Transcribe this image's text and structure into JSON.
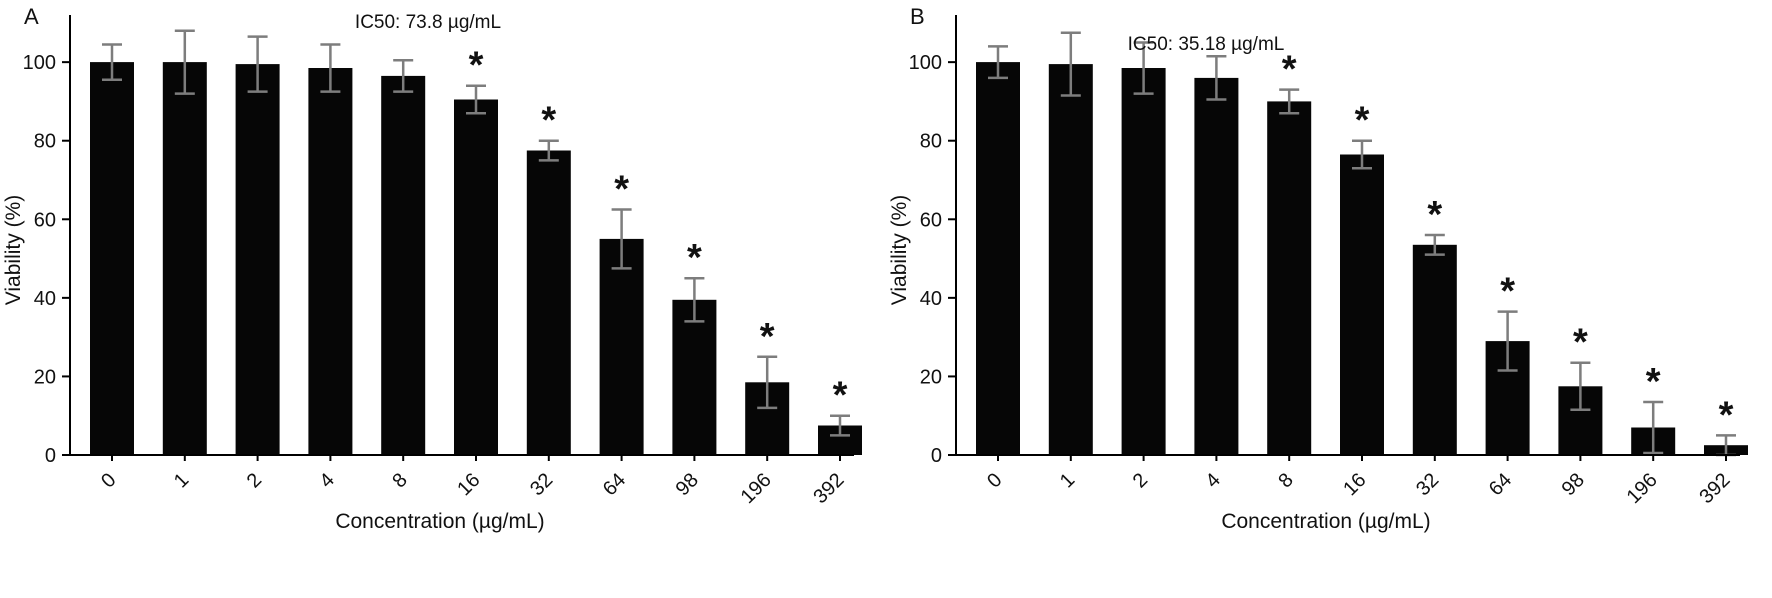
{
  "figure": {
    "background": "#ffffff",
    "bar_color": "#060606",
    "error_bar_color": "#7d7d7d",
    "axis_color": "#000000",
    "text_color": "#111111"
  },
  "chart_data": [
    {
      "type": "bar",
      "panel_label": "A",
      "title": "IC50: 73.8 µg/mL",
      "xlabel": "Concentration (µg/mL)",
      "ylabel": "Viability (%)",
      "categories": [
        "0",
        "1",
        "2",
        "4",
        "8",
        "16",
        "32",
        "64",
        "98",
        "196",
        "392"
      ],
      "values": [
        100,
        100,
        99.5,
        98.5,
        96.5,
        90.5,
        77.5,
        55,
        39.5,
        18.5,
        7.5
      ],
      "errors": [
        4.5,
        8,
        7,
        6,
        4,
        3.5,
        2.5,
        7.5,
        5.5,
        6.5,
        2.5
      ],
      "significant": [
        false,
        false,
        false,
        false,
        false,
        true,
        true,
        true,
        true,
        true,
        true
      ],
      "significance_marker": "*",
      "ylim": [
        0,
        112
      ],
      "yticks": [
        0,
        20,
        40,
        60,
        80,
        100
      ],
      "grid": false,
      "legend": null
    },
    {
      "type": "bar",
      "panel_label": "B",
      "title": "IC50: 35.18 µg/mL",
      "xlabel": "Concentration (µg/mL)",
      "ylabel": "Viability (%)",
      "categories": [
        "0",
        "1",
        "2",
        "4",
        "8",
        "16",
        "32",
        "64",
        "98",
        "196",
        "392"
      ],
      "values": [
        100,
        99.5,
        98.5,
        96,
        90,
        76.5,
        53.5,
        29,
        17.5,
        7,
        2.5
      ],
      "errors": [
        4,
        8,
        6.5,
        5.5,
        3,
        3.5,
        2.5,
        7.5,
        6,
        6.5,
        2.5
      ],
      "significant": [
        false,
        false,
        false,
        false,
        true,
        true,
        true,
        true,
        true,
        true,
        true
      ],
      "significance_marker": "*",
      "ylim": [
        0,
        112
      ],
      "yticks": [
        0,
        20,
        40,
        60,
        80,
        100
      ],
      "grid": false,
      "legend": null
    }
  ]
}
